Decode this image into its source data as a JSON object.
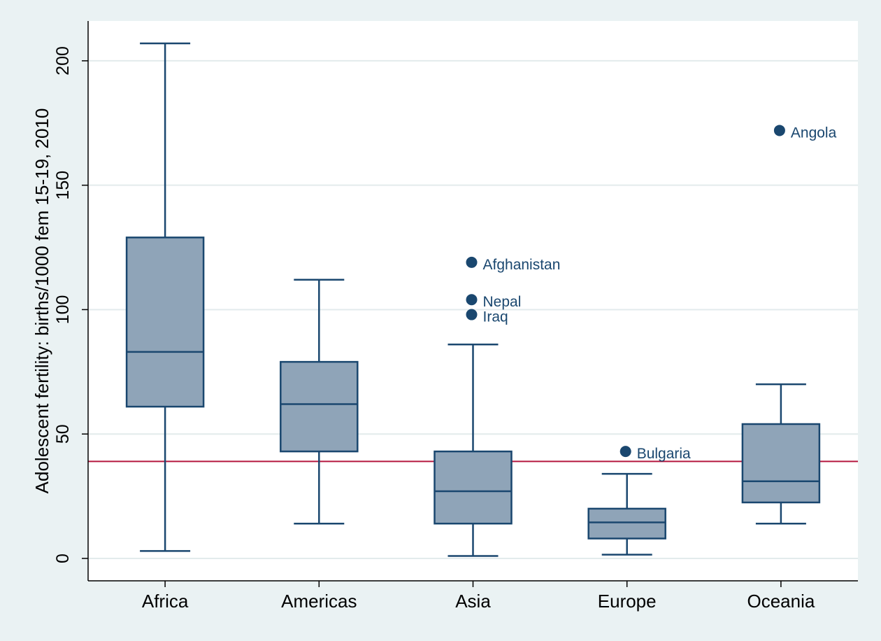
{
  "chart_data": {
    "type": "box",
    "ylabel": "Adolescent fertility: births/1000 fem 15-19, 2010",
    "xlabel": "",
    "ylim": [
      -9,
      216
    ],
    "yticks": [
      0,
      50,
      100,
      150,
      200
    ],
    "grid": true,
    "categories": [
      "Africa",
      "Americas",
      "Asia",
      "Europe",
      "Oceania"
    ],
    "boxes": [
      {
        "category": "Africa",
        "whisker_low": 3,
        "q1": 61,
        "median": 83,
        "q3": 129,
        "whisker_high": 207
      },
      {
        "category": "Americas",
        "whisker_low": 14,
        "q1": 43,
        "median": 62,
        "q3": 79,
        "whisker_high": 112
      },
      {
        "category": "Asia",
        "whisker_low": 1,
        "q1": 14,
        "median": 27,
        "q3": 43,
        "whisker_high": 86
      },
      {
        "category": "Europe",
        "whisker_low": 1.5,
        "q1": 8,
        "median": 14.5,
        "q3": 20,
        "whisker_high": 34
      },
      {
        "category": "Oceania",
        "whisker_low": 14,
        "q1": 22.5,
        "median": 31,
        "q3": 54,
        "whisker_high": 70
      }
    ],
    "outliers": [
      {
        "category": "Asia",
        "value": 119,
        "label": "Afghanistan"
      },
      {
        "category": "Asia",
        "value": 104,
        "label": "Nepal"
      },
      {
        "category": "Asia",
        "value": 98,
        "label": "Iraq"
      },
      {
        "category": "Europe",
        "value": 43,
        "label": "Bulgaria"
      },
      {
        "category": "Oceania",
        "value": 172,
        "label": "Angola"
      }
    ],
    "reference_line": {
      "value": 39,
      "color": "#b5173f"
    },
    "colors": {
      "box_fill": "#8fa4b8",
      "box_stroke": "#1a476f",
      "outlier": "#1a476f",
      "grid": "#e3ebec",
      "plot_bg": "#ffffff",
      "page_bg": "#eaf2f3"
    }
  }
}
